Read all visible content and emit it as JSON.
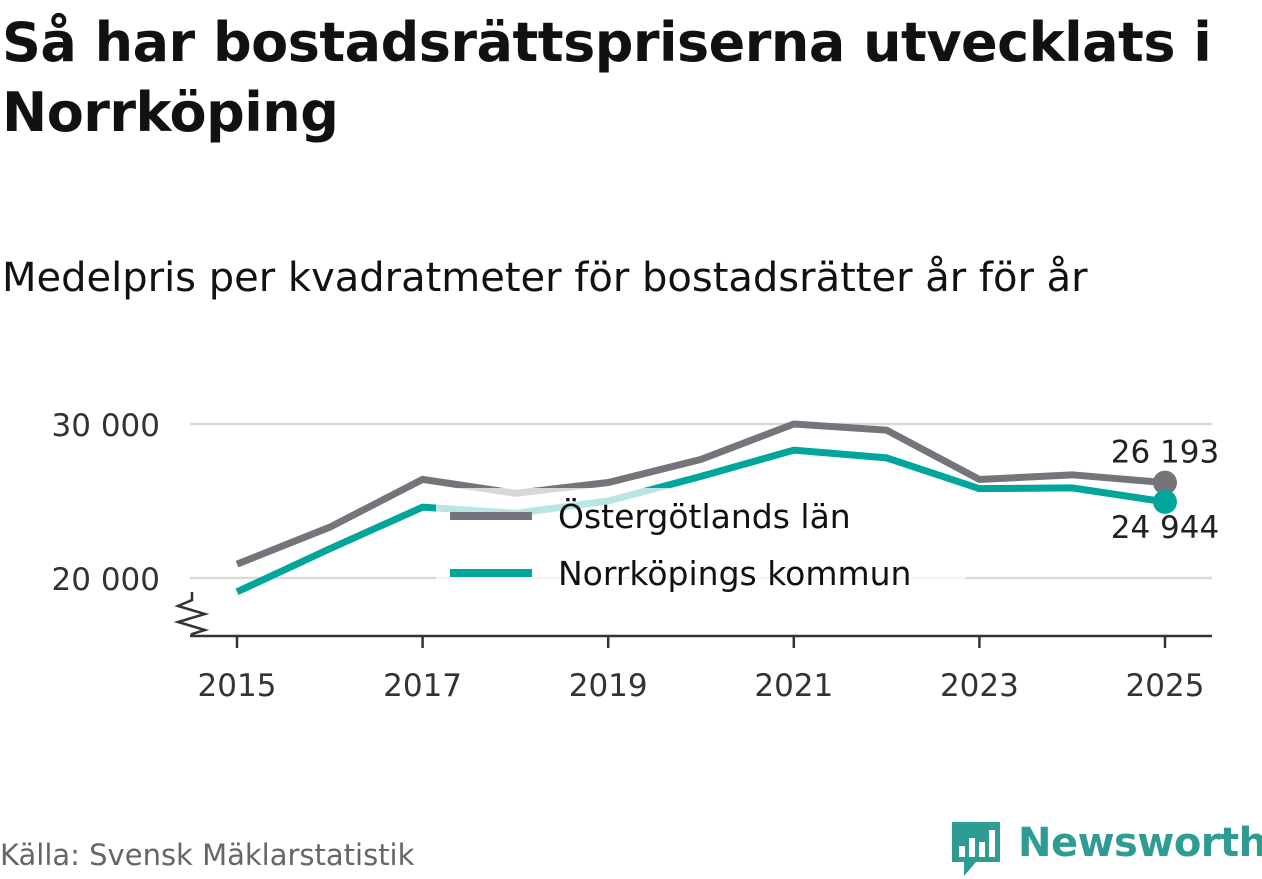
{
  "title": "Så har bostadsrättspriserna utvecklats i Norrköping",
  "subtitle": "Medelpris per kvadratmeter för bostadsrätter år för år",
  "source": "Källa: Svensk Mäklarstatistik",
  "brand": {
    "name": "Newsworthy",
    "color": "#2f9c94",
    "icon": "newsworthy-logo-icon"
  },
  "chart_data": {
    "type": "line",
    "title": "Så har bostadsrättspriserna utvecklats i Norrköping",
    "subtitle": "Medelpris per kvadratmeter för bostadsrätter år för år",
    "xlabel": "",
    "ylabel": "",
    "x": [
      2015,
      2016,
      2017,
      2018,
      2019,
      2020,
      2021,
      2022,
      2023,
      2024,
      2025
    ],
    "xticks": [
      2015,
      2017,
      2019,
      2021,
      2023,
      2025
    ],
    "xtick_labels": [
      "2015",
      "2017",
      "2019",
      "2021",
      "2023",
      "2025"
    ],
    "yticks": [
      20000,
      30000
    ],
    "ytick_labels": [
      "20 000",
      "30 000"
    ],
    "ylim": [
      16500,
      31000
    ],
    "axis_break": true,
    "grid": true,
    "legend_position": "center",
    "series": [
      {
        "name": "Östergötlands län",
        "color": "#75747b",
        "values": [
          20900,
          23300,
          26400,
          25500,
          26200,
          27700,
          30000,
          29600,
          26400,
          26700,
          26193
        ],
        "end_label": "26 193"
      },
      {
        "name": "Norrköpings kommun",
        "color": "#00a59b",
        "values": [
          19100,
          21900,
          24600,
          24200,
          25000,
          26600,
          28300,
          27800,
          25800,
          25850,
          24944
        ],
        "end_label": "24 944"
      }
    ]
  }
}
